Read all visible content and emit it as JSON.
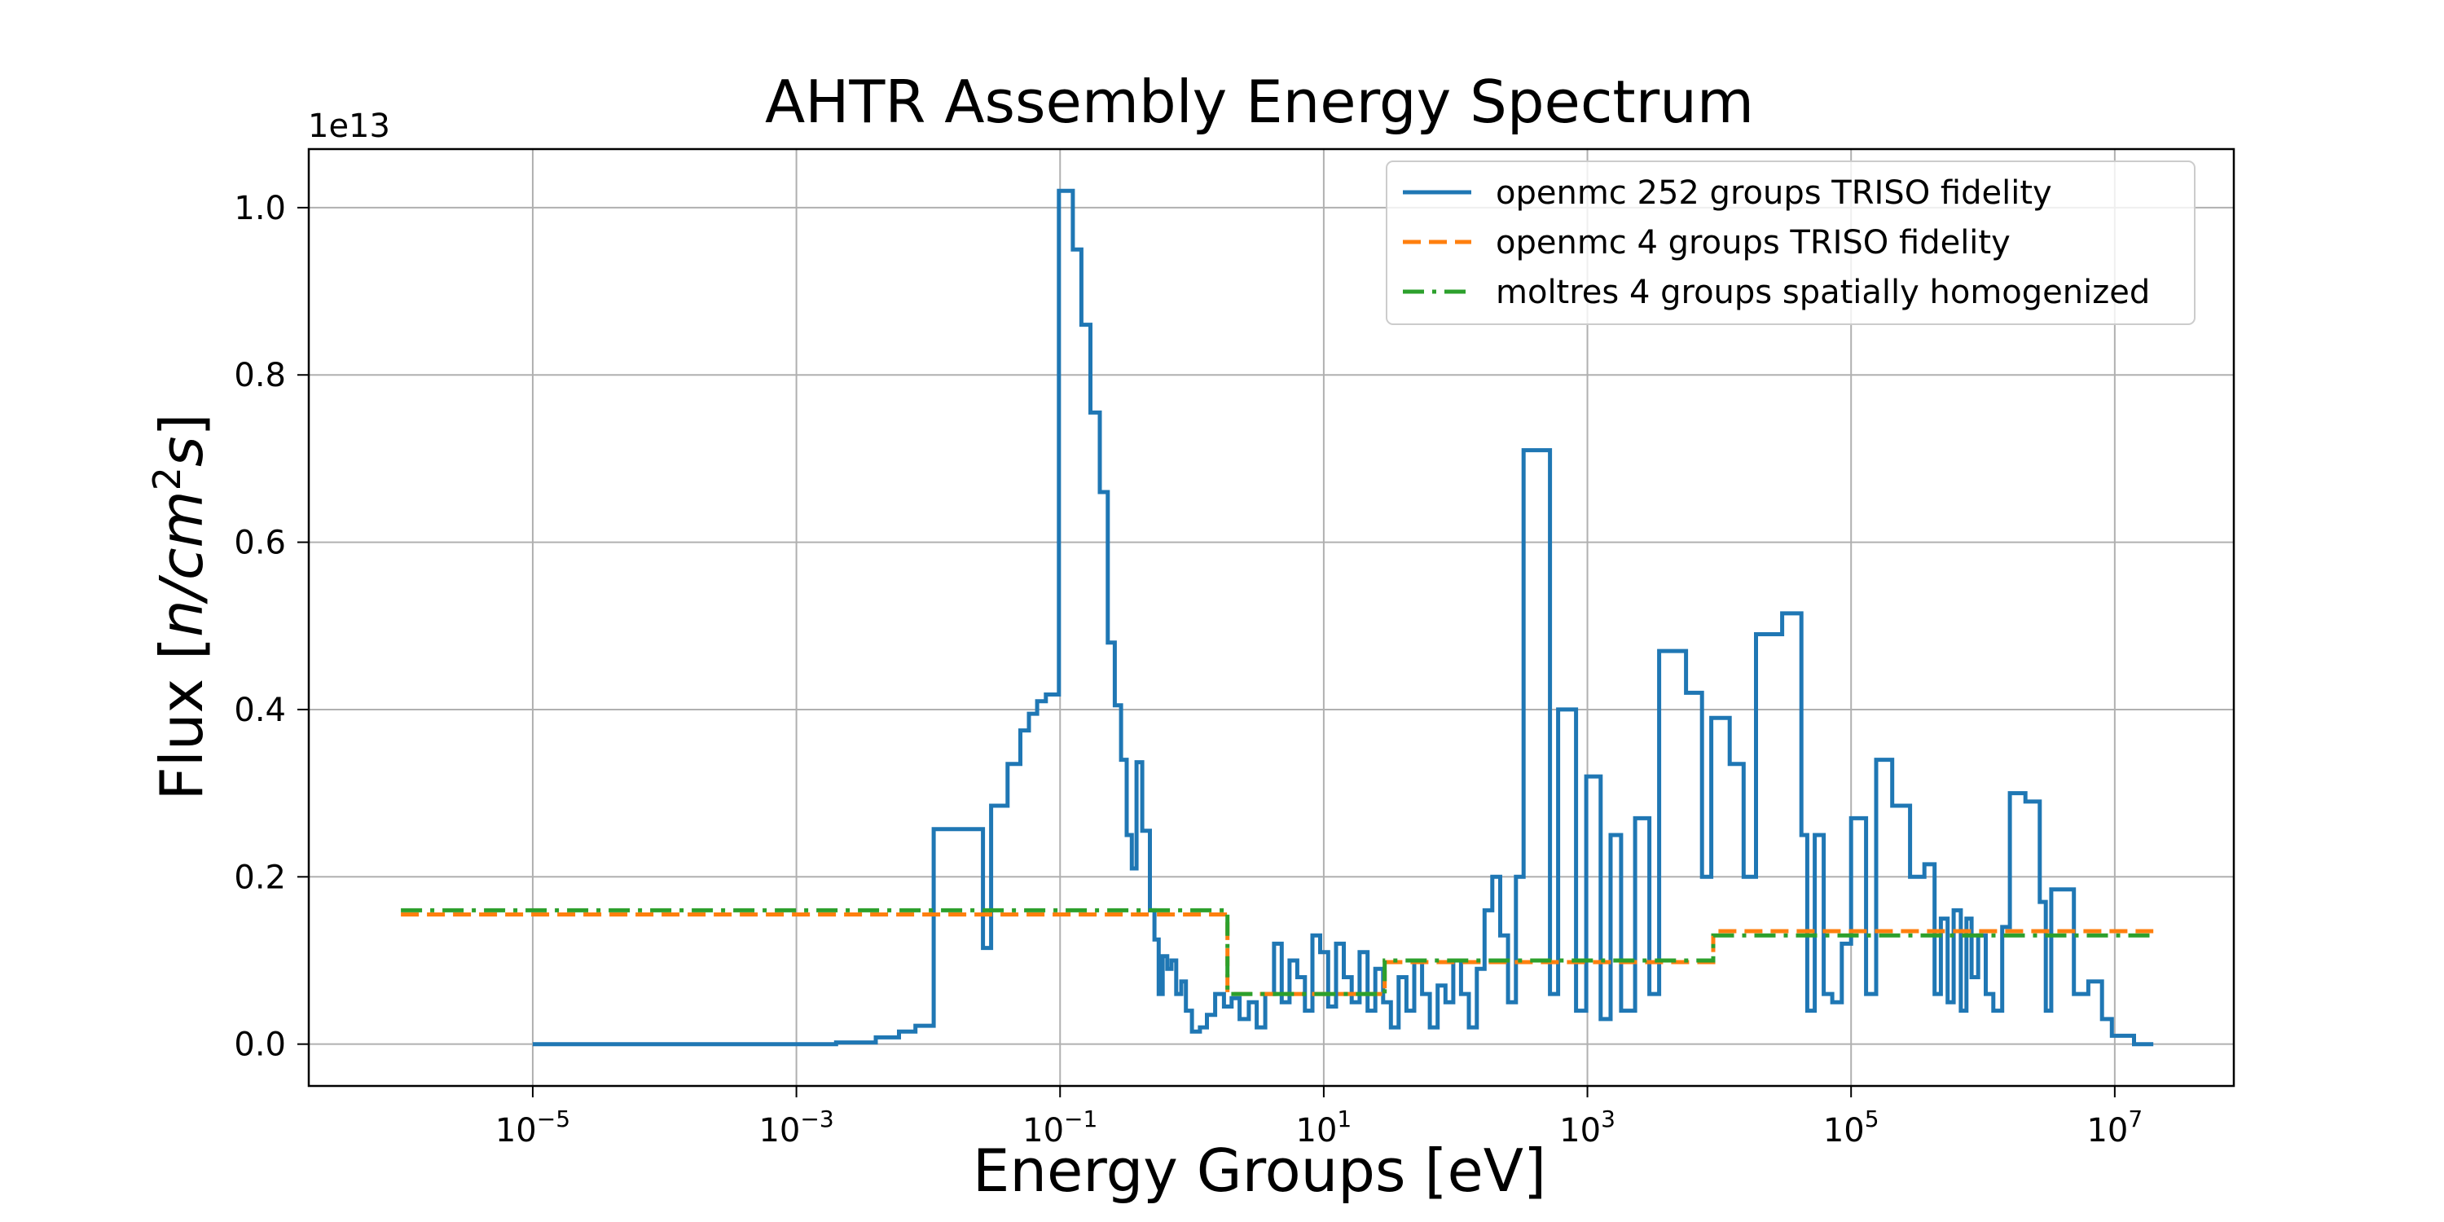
{
  "chart_data": {
    "type": "line",
    "title": "AHTR Assembly Energy Spectrum",
    "xlabel": "Energy Groups [eV]",
    "ylabel": "Flux [n/cm²s]",
    "ylabel_parts": {
      "lead": "Flux [",
      "n": "n",
      "slash": "/",
      "cm": "cm",
      "sup": "2",
      "s": "s",
      "close": "]"
    },
    "y_offset_label": "1e13",
    "x_scale": "log",
    "xlim": [
      2e-07,
      80000000.0
    ],
    "ylim": [
      -0.05,
      1.07
    ],
    "grid": true,
    "legend_position": "upper right",
    "x_ticks": [
      {
        "base": "10",
        "exp": "−5",
        "value": 1e-05
      },
      {
        "base": "10",
        "exp": "−3",
        "value": 0.001
      },
      {
        "base": "10",
        "exp": "−1",
        "value": 0.1
      },
      {
        "base": "10",
        "exp": "1",
        "value": 10.0
      },
      {
        "base": "10",
        "exp": "3",
        "value": 1000.0
      },
      {
        "base": "10",
        "exp": "5",
        "value": 100000.0
      },
      {
        "base": "10",
        "exp": "7",
        "value": 10000000.0
      }
    ],
    "y_ticks": [
      {
        "label": "0.0",
        "value": 0.0
      },
      {
        "label": "0.2",
        "value": 0.2
      },
      {
        "label": "0.4",
        "value": 0.4
      },
      {
        "label": "0.6",
        "value": 0.6
      },
      {
        "label": "0.8",
        "value": 0.8
      },
      {
        "label": "1.0",
        "value": 1.0
      }
    ],
    "series": [
      {
        "name": "openmc 252 groups TRISO fidelity",
        "color": "#1f77b4",
        "linestyle": "solid",
        "step": true,
        "points": [
          [
            1e-05,
            0.0
          ],
          [
            0.0001,
            0.0
          ],
          [
            0.001,
            0.0
          ],
          [
            0.002,
            0.002
          ],
          [
            0.004,
            0.008
          ],
          [
            0.006,
            0.015
          ],
          [
            0.008,
            0.022
          ],
          [
            0.011,
            0.257
          ],
          [
            0.026,
            0.115
          ],
          [
            0.03,
            0.285
          ],
          [
            0.04,
            0.335
          ],
          [
            0.05,
            0.375
          ],
          [
            0.058,
            0.395
          ],
          [
            0.067,
            0.41
          ],
          [
            0.078,
            0.418
          ],
          [
            0.098,
            1.02
          ],
          [
            0.125,
            0.95
          ],
          [
            0.145,
            0.86
          ],
          [
            0.17,
            0.755
          ],
          [
            0.2,
            0.66
          ],
          [
            0.23,
            0.48
          ],
          [
            0.26,
            0.405
          ],
          [
            0.29,
            0.34
          ],
          [
            0.32,
            0.25
          ],
          [
            0.35,
            0.21
          ],
          [
            0.38,
            0.337
          ],
          [
            0.42,
            0.255
          ],
          [
            0.48,
            0.16
          ],
          [
            0.52,
            0.125
          ],
          [
            0.56,
            0.06
          ],
          [
            0.6,
            0.105
          ],
          [
            0.65,
            0.09
          ],
          [
            0.7,
            0.1
          ],
          [
            0.76,
            0.06
          ],
          [
            0.83,
            0.075
          ],
          [
            0.9,
            0.04
          ],
          [
            1.0,
            0.015
          ],
          [
            1.15,
            0.02
          ],
          [
            1.3,
            0.035
          ],
          [
            1.5,
            0.06
          ],
          [
            1.75,
            0.045
          ],
          [
            2.0,
            0.055
          ],
          [
            2.3,
            0.03
          ],
          [
            2.7,
            0.05
          ],
          [
            3.1,
            0.02
          ],
          [
            3.6,
            0.06
          ],
          [
            4.2,
            0.12
          ],
          [
            4.8,
            0.05
          ],
          [
            5.5,
            0.1
          ],
          [
            6.3,
            0.08
          ],
          [
            7.2,
            0.04
          ],
          [
            8.2,
            0.13
          ],
          [
            9.4,
            0.11
          ],
          [
            10.8,
            0.045
          ],
          [
            12.4,
            0.12
          ],
          [
            14.2,
            0.08
          ],
          [
            16.3,
            0.05
          ],
          [
            18.7,
            0.11
          ],
          [
            21.5,
            0.04
          ],
          [
            24.6,
            0.09
          ],
          [
            28.2,
            0.05
          ],
          [
            32.3,
            0.02
          ],
          [
            37.0,
            0.08
          ],
          [
            42.4,
            0.04
          ],
          [
            48.6,
            0.1
          ],
          [
            55.7,
            0.06
          ],
          [
            63.8,
            0.02
          ],
          [
            73.1,
            0.07
          ],
          [
            83.8,
            0.05
          ],
          [
            96.0,
            0.1
          ],
          [
            110,
            0.06
          ],
          [
            126,
            0.02
          ],
          [
            145,
            0.09
          ],
          [
            166,
            0.16
          ],
          [
            190,
            0.2
          ],
          [
            218,
            0.13
          ],
          [
            250,
            0.05
          ],
          [
            287,
            0.2
          ],
          [
            328,
            0.71
          ],
          [
            520,
            0.06
          ],
          [
            600,
            0.4
          ],
          [
            820,
            0.04
          ],
          [
            980,
            0.32
          ],
          [
            1260,
            0.03
          ],
          [
            1500,
            0.25
          ],
          [
            1800,
            0.04
          ],
          [
            2300,
            0.27
          ],
          [
            2950,
            0.06
          ],
          [
            3500,
            0.47
          ],
          [
            5600,
            0.42
          ],
          [
            7400,
            0.2
          ],
          [
            8700,
            0.39
          ],
          [
            12000,
            0.335
          ],
          [
            15300,
            0.2
          ],
          [
            19000,
            0.49
          ],
          [
            30000,
            0.515
          ],
          [
            42000,
            0.25
          ],
          [
            46500,
            0.04
          ],
          [
            53000,
            0.25
          ],
          [
            62000,
            0.06
          ],
          [
            72000,
            0.05
          ],
          [
            85000,
            0.12
          ],
          [
            100000,
            0.27
          ],
          [
            130000,
            0.06
          ],
          [
            155000,
            0.34
          ],
          [
            205000,
            0.285
          ],
          [
            280000,
            0.2
          ],
          [
            360000,
            0.215
          ],
          [
            430000,
            0.06
          ],
          [
            480000,
            0.15
          ],
          [
            540000,
            0.05
          ],
          [
            600000,
            0.16
          ],
          [
            680000,
            0.04
          ],
          [
            750000,
            0.15
          ],
          [
            820000,
            0.08
          ],
          [
            920000,
            0.13
          ],
          [
            1050000,
            0.06
          ],
          [
            1200000,
            0.04
          ],
          [
            1400000,
            0.14
          ],
          [
            1600000,
            0.3
          ],
          [
            2100000,
            0.29
          ],
          [
            2700000,
            0.17
          ],
          [
            3000000,
            0.04
          ],
          [
            3300000,
            0.185
          ],
          [
            4900000,
            0.06
          ],
          [
            6300000,
            0.075
          ],
          [
            8000000,
            0.03
          ],
          [
            9500000,
            0.01
          ],
          [
            11500000,
            0.01
          ],
          [
            14000000,
            0.0
          ],
          [
            19600000,
            0.0
          ]
        ]
      },
      {
        "name": "openmc 4 groups TRISO fidelity",
        "color": "#ff7f0e",
        "linestyle": "dashed",
        "step": true,
        "points": [
          [
            1e-06,
            0.155
          ],
          [
            1.86,
            0.06
          ],
          [
            29.0,
            0.098
          ],
          [
            9000,
            0.135
          ],
          [
            19600000,
            0.135
          ]
        ]
      },
      {
        "name": "moltres 4 groups spatially homogenized",
        "color": "#2ca02c",
        "linestyle": "dashdot",
        "step": true,
        "points": [
          [
            1e-06,
            0.16
          ],
          [
            1.86,
            0.06
          ],
          [
            29.0,
            0.1
          ],
          [
            9000,
            0.13
          ],
          [
            19600000,
            0.13
          ]
        ]
      }
    ]
  }
}
